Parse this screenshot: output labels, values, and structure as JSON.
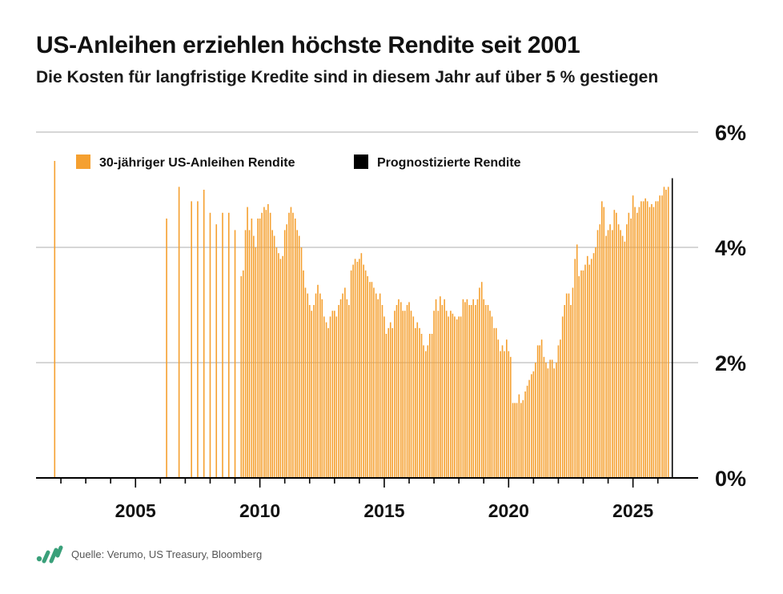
{
  "header": {
    "title": "US-Anleihen erziehlen höchste Rendite seit 2001",
    "subtitle": "Die Kosten für langfristige Kredite sind in diesem Jahr auf über 5 % gestiegen"
  },
  "footer": {
    "source": "Quelle: Verumo, US Treasury, Bloomberg",
    "logo_icon": "verumo-logo-icon"
  },
  "colors": {
    "historical": "#F5A030",
    "forecast": "#000000",
    "grid": "#c8c8c8",
    "axis": "#000000",
    "logo": "#3aa07a"
  },
  "chart_data": {
    "type": "bar",
    "legend": [
      {
        "name": "30-jähriger US-Anleihen Rendite",
        "color": "#F5A030"
      },
      {
        "name": "Prognostizierte Rendite",
        "color": "#000000"
      }
    ],
    "legend_position": "top-left",
    "y_axis_position": "right",
    "ylim": [
      0,
      6
    ],
    "yticks": [
      0,
      2,
      4,
      6
    ],
    "ytick_labels": [
      "0%",
      "2%",
      "4%",
      "6%"
    ],
    "xlim": [
      2001,
      2026.75
    ],
    "xticks": [
      2005,
      2010,
      2015,
      2020,
      2025
    ],
    "xtick_labels": [
      "2005",
      "2010",
      "2015",
      "2020",
      "2025"
    ],
    "minor_xticks_per_year": 1,
    "grid": "horizontal",
    "series": [
      {
        "name": "30-jähriger US-Anleihen Rendite",
        "points": [
          [
            2001.75,
            5.5
          ],
          [
            2006.25,
            4.5
          ],
          [
            2006.75,
            5.05
          ],
          [
            2007.25,
            4.8
          ],
          [
            2007.5,
            4.8
          ],
          [
            2007.75,
            5.0
          ],
          [
            2008.0,
            4.6
          ],
          [
            2008.25,
            4.4
          ],
          [
            2008.5,
            4.6
          ],
          [
            2008.75,
            4.6
          ],
          [
            2009.0,
            4.3
          ],
          [
            2009.25,
            3.5
          ],
          [
            2009.33,
            3.6
          ],
          [
            2009.42,
            4.3
          ],
          [
            2009.5,
            4.7
          ],
          [
            2009.58,
            4.3
          ],
          [
            2009.67,
            4.5
          ],
          [
            2009.75,
            4.2
          ],
          [
            2009.83,
            4.0
          ],
          [
            2009.92,
            4.5
          ],
          [
            2010.0,
            4.5
          ],
          [
            2010.08,
            4.6
          ],
          [
            2010.17,
            4.7
          ],
          [
            2010.25,
            4.65
          ],
          [
            2010.33,
            4.75
          ],
          [
            2010.42,
            4.6
          ],
          [
            2010.5,
            4.3
          ],
          [
            2010.58,
            4.2
          ],
          [
            2010.67,
            4.0
          ],
          [
            2010.75,
            3.9
          ],
          [
            2010.83,
            3.8
          ],
          [
            2010.92,
            3.85
          ],
          [
            2011.0,
            4.3
          ],
          [
            2011.08,
            4.4
          ],
          [
            2011.17,
            4.6
          ],
          [
            2011.25,
            4.7
          ],
          [
            2011.33,
            4.6
          ],
          [
            2011.42,
            4.5
          ],
          [
            2011.5,
            4.3
          ],
          [
            2011.58,
            4.2
          ],
          [
            2011.67,
            4.0
          ],
          [
            2011.75,
            3.6
          ],
          [
            2011.83,
            3.3
          ],
          [
            2011.92,
            3.2
          ],
          [
            2012.0,
            3.0
          ],
          [
            2012.08,
            2.9
          ],
          [
            2012.17,
            3.0
          ],
          [
            2012.25,
            3.2
          ],
          [
            2012.33,
            3.35
          ],
          [
            2012.42,
            3.2
          ],
          [
            2012.5,
            3.1
          ],
          [
            2012.58,
            2.8
          ],
          [
            2012.67,
            2.7
          ],
          [
            2012.75,
            2.6
          ],
          [
            2012.83,
            2.8
          ],
          [
            2012.92,
            2.9
          ],
          [
            2013.0,
            2.9
          ],
          [
            2013.08,
            2.8
          ],
          [
            2013.17,
            3.0
          ],
          [
            2013.25,
            3.1
          ],
          [
            2013.33,
            3.2
          ],
          [
            2013.42,
            3.3
          ],
          [
            2013.5,
            3.1
          ],
          [
            2013.58,
            3.0
          ],
          [
            2013.67,
            3.6
          ],
          [
            2013.75,
            3.7
          ],
          [
            2013.83,
            3.8
          ],
          [
            2013.92,
            3.75
          ],
          [
            2014.0,
            3.8
          ],
          [
            2014.08,
            3.9
          ],
          [
            2014.17,
            3.7
          ],
          [
            2014.25,
            3.6
          ],
          [
            2014.33,
            3.5
          ],
          [
            2014.42,
            3.4
          ],
          [
            2014.5,
            3.4
          ],
          [
            2014.58,
            3.3
          ],
          [
            2014.67,
            3.2
          ],
          [
            2014.75,
            3.1
          ],
          [
            2014.83,
            3.2
          ],
          [
            2014.92,
            3.0
          ],
          [
            2015.0,
            2.8
          ],
          [
            2015.08,
            2.5
          ],
          [
            2015.17,
            2.6
          ],
          [
            2015.25,
            2.7
          ],
          [
            2015.33,
            2.6
          ],
          [
            2015.42,
            2.9
          ],
          [
            2015.5,
            3.0
          ],
          [
            2015.58,
            3.1
          ],
          [
            2015.67,
            3.05
          ],
          [
            2015.75,
            2.9
          ],
          [
            2015.83,
            2.9
          ],
          [
            2015.92,
            3.0
          ],
          [
            2016.0,
            3.05
          ],
          [
            2016.08,
            2.9
          ],
          [
            2016.17,
            2.8
          ],
          [
            2016.25,
            2.6
          ],
          [
            2016.33,
            2.7
          ],
          [
            2016.42,
            2.6
          ],
          [
            2016.5,
            2.5
          ],
          [
            2016.58,
            2.3
          ],
          [
            2016.67,
            2.2
          ],
          [
            2016.75,
            2.3
          ],
          [
            2016.83,
            2.5
          ],
          [
            2016.92,
            2.5
          ],
          [
            2017.0,
            2.9
          ],
          [
            2017.08,
            3.1
          ],
          [
            2017.17,
            2.9
          ],
          [
            2017.25,
            3.15
          ],
          [
            2017.33,
            3.0
          ],
          [
            2017.42,
            3.1
          ],
          [
            2017.5,
            2.9
          ],
          [
            2017.58,
            2.8
          ],
          [
            2017.67,
            2.9
          ],
          [
            2017.75,
            2.85
          ],
          [
            2017.83,
            2.8
          ],
          [
            2017.92,
            2.75
          ],
          [
            2018.0,
            2.8
          ],
          [
            2018.08,
            2.8
          ],
          [
            2018.17,
            3.1
          ],
          [
            2018.25,
            3.05
          ],
          [
            2018.33,
            3.1
          ],
          [
            2018.42,
            3.0
          ],
          [
            2018.5,
            3.0
          ],
          [
            2018.58,
            3.1
          ],
          [
            2018.67,
            3.0
          ],
          [
            2018.75,
            3.1
          ],
          [
            2018.83,
            3.3
          ],
          [
            2018.92,
            3.4
          ],
          [
            2019.0,
            3.1
          ],
          [
            2019.08,
            3.0
          ],
          [
            2019.17,
            3.0
          ],
          [
            2019.25,
            2.9
          ],
          [
            2019.33,
            2.8
          ],
          [
            2019.42,
            2.6
          ],
          [
            2019.5,
            2.6
          ],
          [
            2019.58,
            2.4
          ],
          [
            2019.67,
            2.2
          ],
          [
            2019.75,
            2.3
          ],
          [
            2019.83,
            2.2
          ],
          [
            2019.92,
            2.4
          ],
          [
            2020.0,
            2.2
          ],
          [
            2020.08,
            2.1
          ],
          [
            2020.17,
            1.3
          ],
          [
            2020.25,
            1.3
          ],
          [
            2020.33,
            1.3
          ],
          [
            2020.42,
            1.45
          ],
          [
            2020.5,
            1.3
          ],
          [
            2020.58,
            1.35
          ],
          [
            2020.67,
            1.5
          ],
          [
            2020.75,
            1.6
          ],
          [
            2020.83,
            1.7
          ],
          [
            2020.92,
            1.8
          ],
          [
            2021.0,
            1.85
          ],
          [
            2021.08,
            2.0
          ],
          [
            2021.17,
            2.3
          ],
          [
            2021.25,
            2.3
          ],
          [
            2021.33,
            2.4
          ],
          [
            2021.42,
            2.1
          ],
          [
            2021.5,
            2.0
          ],
          [
            2021.58,
            1.9
          ],
          [
            2021.67,
            2.05
          ],
          [
            2021.75,
            2.05
          ],
          [
            2021.83,
            1.9
          ],
          [
            2021.92,
            2.0
          ],
          [
            2022.0,
            2.3
          ],
          [
            2022.08,
            2.4
          ],
          [
            2022.17,
            2.8
          ],
          [
            2022.25,
            3.0
          ],
          [
            2022.33,
            3.2
          ],
          [
            2022.42,
            3.2
          ],
          [
            2022.5,
            3.0
          ],
          [
            2022.58,
            3.3
          ],
          [
            2022.67,
            3.8
          ],
          [
            2022.75,
            4.05
          ],
          [
            2022.83,
            3.5
          ],
          [
            2022.92,
            3.6
          ],
          [
            2023.0,
            3.6
          ],
          [
            2023.08,
            3.7
          ],
          [
            2023.17,
            3.85
          ],
          [
            2023.25,
            3.7
          ],
          [
            2023.33,
            3.8
          ],
          [
            2023.42,
            3.9
          ],
          [
            2023.5,
            4.0
          ],
          [
            2023.58,
            4.3
          ],
          [
            2023.67,
            4.4
          ],
          [
            2023.75,
            4.8
          ],
          [
            2023.83,
            4.7
          ],
          [
            2023.92,
            4.2
          ],
          [
            2024.0,
            4.3
          ],
          [
            2024.08,
            4.4
          ],
          [
            2024.17,
            4.3
          ],
          [
            2024.25,
            4.65
          ],
          [
            2024.33,
            4.6
          ],
          [
            2024.42,
            4.4
          ],
          [
            2024.5,
            4.3
          ],
          [
            2024.58,
            4.2
          ],
          [
            2024.67,
            4.1
          ],
          [
            2024.75,
            4.4
          ],
          [
            2024.83,
            4.6
          ],
          [
            2024.92,
            4.5
          ],
          [
            2025.0,
            4.9
          ],
          [
            2025.08,
            4.7
          ],
          [
            2025.17,
            4.6
          ],
          [
            2025.25,
            4.7
          ],
          [
            2025.33,
            4.8
          ],
          [
            2025.42,
            4.8
          ],
          [
            2025.5,
            4.85
          ],
          [
            2025.58,
            4.8
          ],
          [
            2025.67,
            4.7
          ],
          [
            2025.75,
            4.75
          ],
          [
            2025.83,
            4.7
          ],
          [
            2025.92,
            4.8
          ],
          [
            2026.0,
            4.8
          ],
          [
            2026.08,
            4.9
          ],
          [
            2026.17,
            4.9
          ],
          [
            2026.25,
            5.05
          ],
          [
            2026.33,
            5.0
          ],
          [
            2026.42,
            5.05
          ]
        ]
      },
      {
        "name": "Prognostizierte Rendite",
        "points": [
          [
            2026.58,
            5.2
          ]
        ]
      }
    ]
  }
}
